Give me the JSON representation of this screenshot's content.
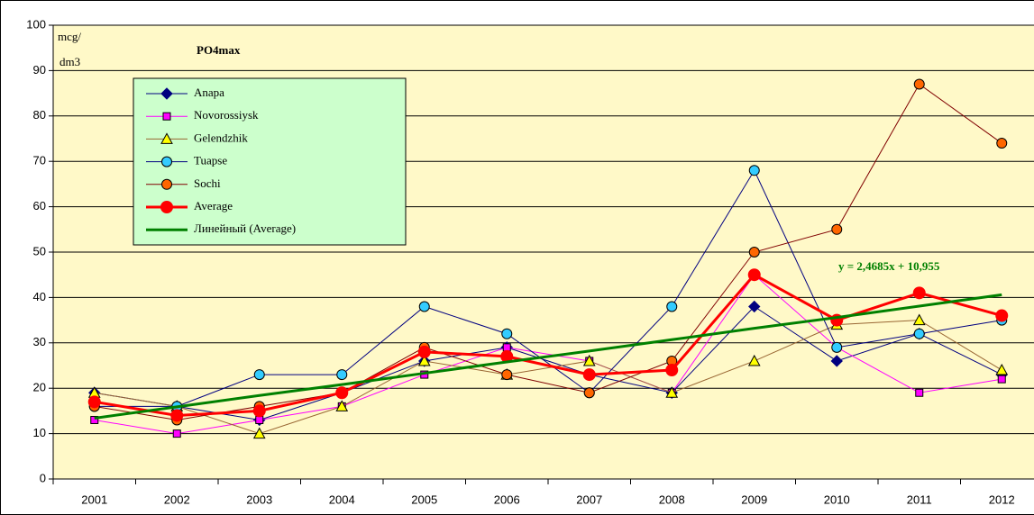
{
  "chart_data": {
    "type": "line",
    "title": "PO4max",
    "y_label": [
      "mcg/",
      "dm3"
    ],
    "annotation": "y = 2,4685x + 10,955",
    "categories": [
      "2001",
      "2002",
      "2003",
      "2004",
      "2005",
      "2006",
      "2007",
      "2008",
      "2009",
      "2010",
      "2011",
      "2012"
    ],
    "series": [
      {
        "name": "Anapa",
        "color": "#000080",
        "marker": "diamond",
        "marker_color": "#000080",
        "values": [
          19,
          16,
          13,
          19,
          26,
          29,
          23,
          19,
          38,
          26,
          32,
          23
        ]
      },
      {
        "name": "Novorossiysk",
        "color": "#ff00ff",
        "marker": "square",
        "marker_color": "#ff00ff",
        "values": [
          13,
          10,
          13,
          16,
          23,
          29,
          26,
          19,
          45,
          29,
          19,
          22
        ]
      },
      {
        "name": "Gelendzhik",
        "color": "#996633",
        "marker": "triangle",
        "marker_color": "#ffff00",
        "values": [
          19,
          16,
          10,
          16,
          26,
          23,
          26,
          19,
          26,
          34,
          35,
          24
        ]
      },
      {
        "name": "Tuapse",
        "color": "#000080",
        "marker": "circle",
        "marker_color": "#33ccff",
        "values": [
          16,
          16,
          23,
          23,
          38,
          32,
          19,
          38,
          68,
          29,
          32,
          35
        ]
      },
      {
        "name": "Sochi",
        "color": "#800000",
        "marker": "circle",
        "marker_color": "#ff6600",
        "values": [
          16,
          13,
          16,
          19,
          29,
          23,
          19,
          26,
          50,
          55,
          87,
          74
        ]
      },
      {
        "name": "Average",
        "color": "#ff0000",
        "marker": "bigcircle",
        "marker_color": "#ff0000",
        "width": 3,
        "values": [
          17,
          14,
          15,
          19,
          28,
          27,
          23,
          24,
          45,
          35,
          41,
          36
        ]
      },
      {
        "name": "Линейный (Average)",
        "color": "#008000",
        "marker": "none",
        "width": 3,
        "values": [
          13.4,
          15.9,
          18.4,
          20.8,
          23.3,
          25.8,
          28.2,
          30.7,
          33.2,
          35.6,
          38.1,
          40.6
        ]
      }
    ],
    "ylim": [
      0,
      100
    ],
    "yticks": [
      0,
      10,
      20,
      30,
      40,
      50,
      60,
      70,
      80,
      90,
      100
    ],
    "grid": true,
    "plot_color": "#fff9c8",
    "legend_color": "#ccffcc"
  }
}
